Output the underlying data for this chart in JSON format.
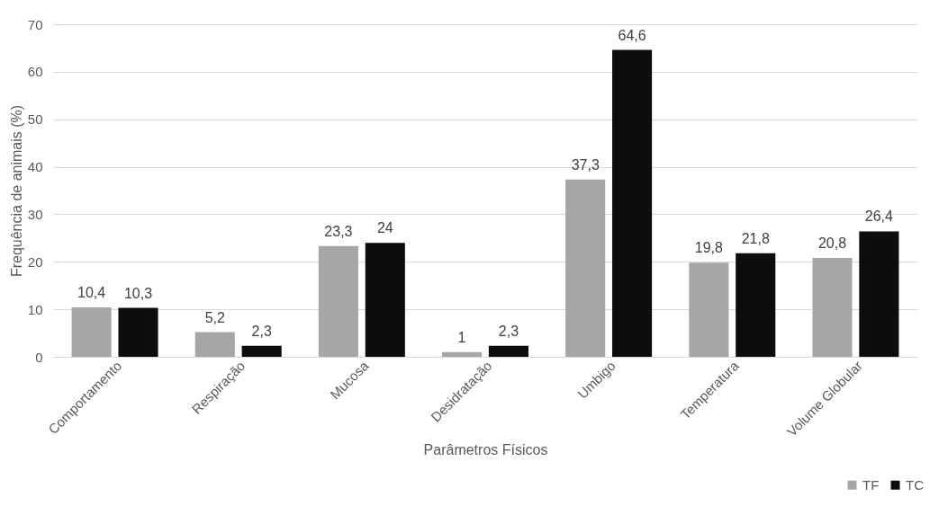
{
  "chart_data": {
    "type": "bar",
    "xlabel": "Parâmetros Físicos",
    "ylabel": "Frequência de animais (%)",
    "categories": [
      "Comportamento",
      "Respiração",
      "Mucosa",
      "Desidratação",
      "Umbigo",
      "Temperatura",
      "Volume Globular"
    ],
    "series": [
      {
        "name": "TF",
        "color": "#a6a6a6",
        "values": [
          10.4,
          5.2,
          23.3,
          1,
          37.3,
          19.8,
          20.8
        ],
        "value_labels": [
          "10,4",
          "5,2",
          "23,3",
          "1",
          "37,3",
          "19,8",
          "20,8"
        ]
      },
      {
        "name": "TC",
        "color": "#0d0d0d",
        "values": [
          10.3,
          2.3,
          24,
          2.3,
          64.6,
          21.8,
          26.4
        ],
        "value_labels": [
          "10,3",
          "2,3",
          "24",
          "2,3",
          "64,6",
          "21,8",
          "26,4"
        ]
      }
    ],
    "ylim": [
      0,
      70
    ],
    "yticks": [
      0,
      10,
      20,
      30,
      40,
      50,
      60,
      70
    ],
    "grid": "y",
    "legend": "bottom right"
  }
}
